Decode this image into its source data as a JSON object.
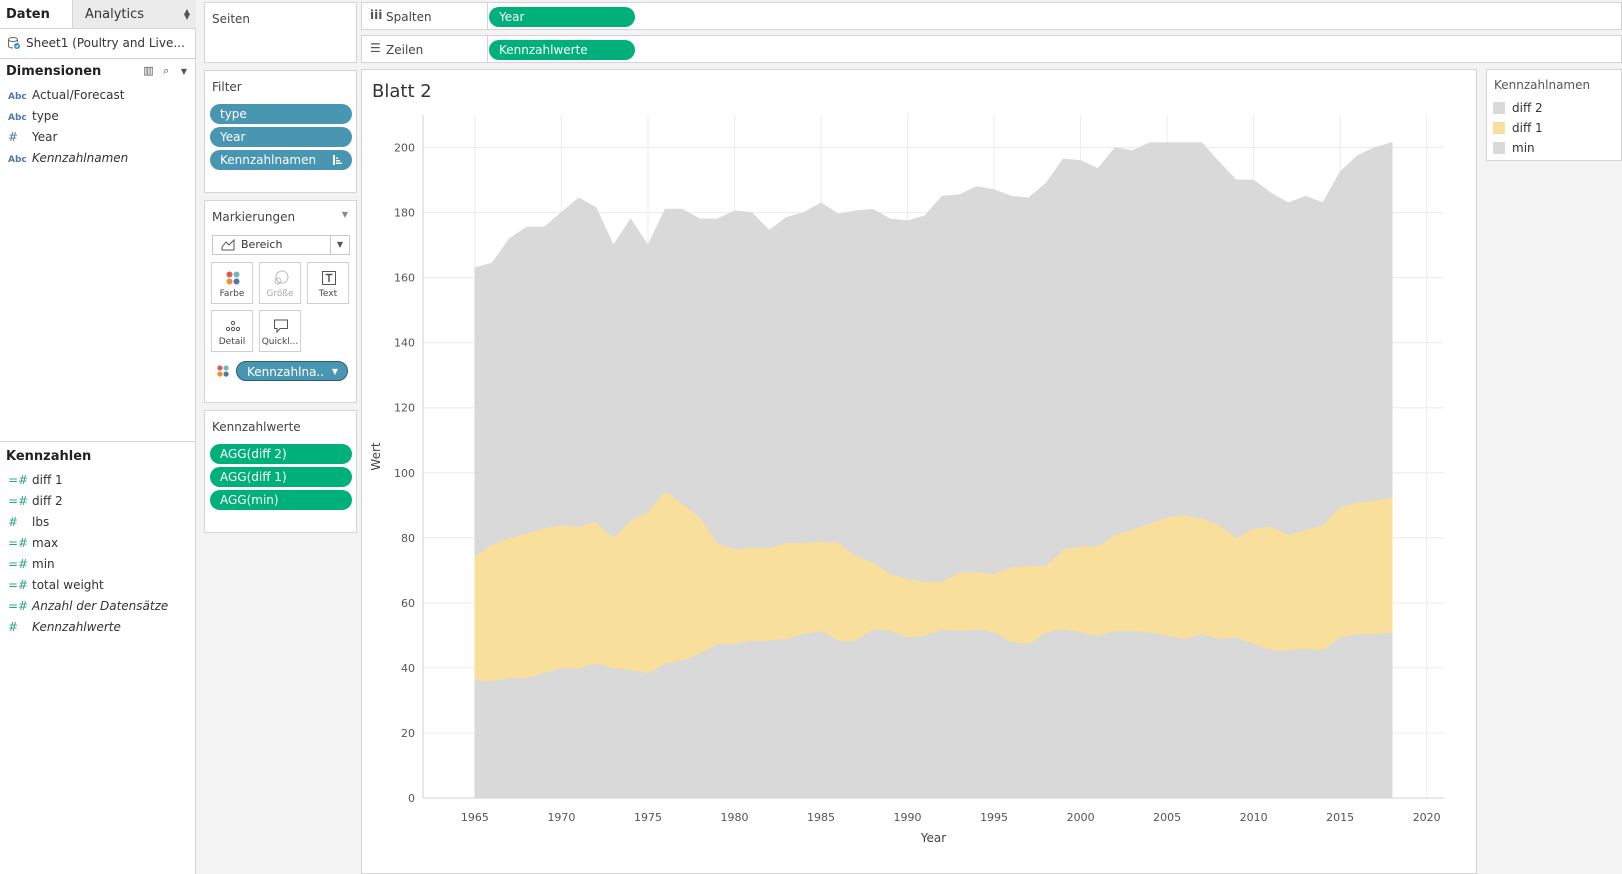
{
  "data_pane": {
    "tab_data": "Daten",
    "tab_analytics": "Analytics",
    "source": "Sheet1 (Poultry and Live...",
    "dimensions_title": "Dimensionen",
    "dimensions": [
      {
        "icon": "Abc",
        "label": "Actual/Forecast"
      },
      {
        "icon": "Abc",
        "label": "type"
      },
      {
        "icon": "#",
        "label": "Year"
      },
      {
        "icon": "Abc",
        "label": "Kennzahlnamen"
      }
    ],
    "measures_title": "Kennzahlen",
    "measures": [
      {
        "icon": "=#",
        "label": "diff 1"
      },
      {
        "icon": "=#",
        "label": "diff 2"
      },
      {
        "icon": "#",
        "label": "lbs"
      },
      {
        "icon": "=#",
        "label": "max"
      },
      {
        "icon": "=#",
        "label": "min"
      },
      {
        "icon": "=#",
        "label": "total weight"
      },
      {
        "icon": "=#",
        "label": "Anzahl der Datensätze"
      },
      {
        "icon": "#",
        "label": "Kennzahlwerte"
      }
    ]
  },
  "pages": {
    "title": "Seiten"
  },
  "filters": {
    "title": "Filter",
    "pills": [
      "type",
      "Year",
      "Kennzahlnamen"
    ]
  },
  "marks": {
    "title": "Markierungen",
    "type": "Bereich",
    "buttons": {
      "color": "Farbe",
      "size": "Größe",
      "text": "Text",
      "detail": "Detail",
      "tooltip": "Quickl..."
    },
    "color_pill": "Kennzahlna.."
  },
  "measure_values": {
    "title": "Kennzahlwerte",
    "pills": [
      "AGG(diff 2)",
      "AGG(diff 1)",
      "AGG(min)"
    ]
  },
  "shelves": {
    "columns_label": "Spalten",
    "columns_pill": "Year",
    "rows_label": "Zeilen",
    "rows_pill": "Kennzahlwerte"
  },
  "sheet": {
    "title": "Blatt 2"
  },
  "legend": {
    "title": "Kennzahlnamen",
    "items": [
      {
        "label": "diff 2",
        "color": "#d9d9d9"
      },
      {
        "label": "diff 1",
        "color": "#f9df9c"
      },
      {
        "label": "min",
        "color": "#d9d9d9"
      }
    ]
  },
  "chart_data": {
    "type": "area",
    "stacked": true,
    "xlabel": "Year",
    "ylabel": "Wert",
    "xlim": [
      1962,
      2021
    ],
    "ylim": [
      0,
      210
    ],
    "x_ticks": [
      1965,
      1970,
      1975,
      1980,
      1985,
      1990,
      1995,
      2000,
      2005,
      2010,
      2015,
      2020
    ],
    "y_ticks": [
      0,
      20,
      40,
      60,
      80,
      100,
      120,
      140,
      160,
      180,
      200
    ],
    "grid": true,
    "colors": {
      "min": "#d9d9d9",
      "diff 1": "#f9df9c",
      "diff 2": "#d9d9d9"
    },
    "x": [
      1965,
      1966,
      1967,
      1968,
      1969,
      1970,
      1971,
      1972,
      1973,
      1974,
      1975,
      1976,
      1977,
      1978,
      1979,
      1980,
      1981,
      1982,
      1983,
      1984,
      1985,
      1986,
      1987,
      1988,
      1989,
      1990,
      1991,
      1992,
      1993,
      1994,
      1995,
      1996,
      1997,
      1998,
      1999,
      2000,
      2001,
      2002,
      2003,
      2004,
      2005,
      2006,
      2007,
      2008,
      2009,
      2010,
      2011,
      2012,
      2013,
      2014,
      2015,
      2016,
      2017,
      2018
    ],
    "series": [
      {
        "name": "min",
        "values": [
          36.5,
          36,
          37,
          37,
          38.5,
          40,
          40,
          41.5,
          40,
          39.5,
          38.5,
          41.5,
          42.5,
          44.5,
          47.5,
          47.5,
          48.5,
          48.5,
          49,
          50.5,
          51.5,
          48.5,
          48.5,
          52,
          51.5,
          49.5,
          50,
          52,
          51.5,
          52,
          51,
          48,
          47.5,
          51,
          52,
          51,
          50,
          51.5,
          51.5,
          51,
          50,
          49,
          50.5,
          49,
          49.5,
          47.5,
          45.5,
          45.5,
          46,
          45.5,
          49.5,
          50.5,
          50.5,
          51
        ]
      },
      {
        "name": "diff 1",
        "values": [
          38,
          42,
          43,
          44.5,
          44.5,
          44,
          43.5,
          43.5,
          40,
          46,
          49.5,
          53,
          48,
          42,
          31,
          29,
          28.5,
          28.5,
          29.5,
          28,
          27.5,
          30,
          26,
          20.5,
          17.5,
          18,
          16.5,
          14.5,
          18,
          17.5,
          18,
          23,
          24,
          20.5,
          24.5,
          26.5,
          27.5,
          29.5,
          31,
          33.5,
          36.5,
          38,
          35.5,
          35,
          30.5,
          35.5,
          38,
          35.5,
          36.5,
          38.5,
          40,
          40.5,
          41,
          41.5
        ]
      },
      {
        "name": "diff 2",
        "values": [
          88.5,
          86.5,
          92,
          94,
          92.5,
          96,
          101,
          96.5,
          90,
          92.5,
          82,
          86.5,
          90.5,
          91.5,
          99.5,
          104,
          103,
          97.5,
          100,
          101.5,
          104,
          101,
          106,
          108.5,
          109,
          110,
          112.5,
          118.5,
          116,
          118.5,
          118,
          114,
          113,
          117.5,
          120,
          118.5,
          116,
          119,
          116.5,
          117,
          115,
          114.5,
          115.5,
          111.5,
          110,
          107,
          102.5,
          102,
          102.5,
          99,
          103,
          106.5,
          108.5,
          109
        ]
      }
    ]
  }
}
